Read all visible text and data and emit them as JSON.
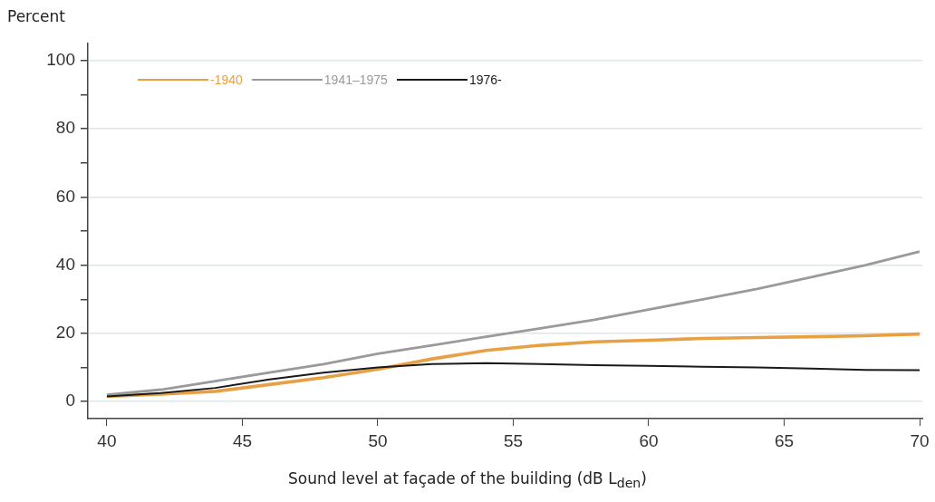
{
  "chart_data": {
    "type": "line",
    "xlabel": "Sound level at façade of the building (dB L$_{den}$)",
    "ylabel": "Percent",
    "x": [
      40,
      42,
      44,
      46,
      48,
      50,
      52,
      54,
      56,
      58,
      60,
      62,
      64,
      66,
      68,
      70
    ],
    "xlim": [
      39.3,
      70.1
    ],
    "xticks": [
      40,
      45,
      50,
      55,
      60,
      65,
      70
    ],
    "ylim": [
      -5,
      105
    ],
    "yticks": [
      0,
      {
        "value": 10,
        "label": null
      },
      20,
      {
        "value": 30,
        "label": null
      },
      40,
      {
        "value": 50,
        "label": null
      },
      60,
      {
        "value": 70,
        "label": null
      },
      80,
      {
        "value": 90,
        "label": null
      },
      100
    ],
    "grid": "y",
    "legend": "top left",
    "marker": "none",
    "line_style": "solid",
    "series": [
      {
        "name": "-1940",
        "color": "#e8a044",
        "values": [
          1.5,
          2.2,
          3,
          5,
          7,
          9.5,
          12.5,
          15,
          16.5,
          17.5,
          18,
          18.5,
          18.8,
          19,
          19.3,
          19.8
        ]
      },
      {
        "name": "1941–1975",
        "color": "#9a9a9a",
        "values": [
          2,
          3.5,
          6,
          8.5,
          11,
          14,
          16.5,
          19,
          21.5,
          24,
          27,
          30,
          33,
          36.5,
          40,
          44
        ]
      },
      {
        "name": "1976-",
        "color": "#1a1a1a",
        "values": [
          1.5,
          2.5,
          4,
          6.5,
          8.5,
          10,
          11,
          11.3,
          11,
          10.7,
          10.5,
          10.2,
          10,
          9.7,
          9.3,
          9.2
        ]
      }
    ]
  }
}
